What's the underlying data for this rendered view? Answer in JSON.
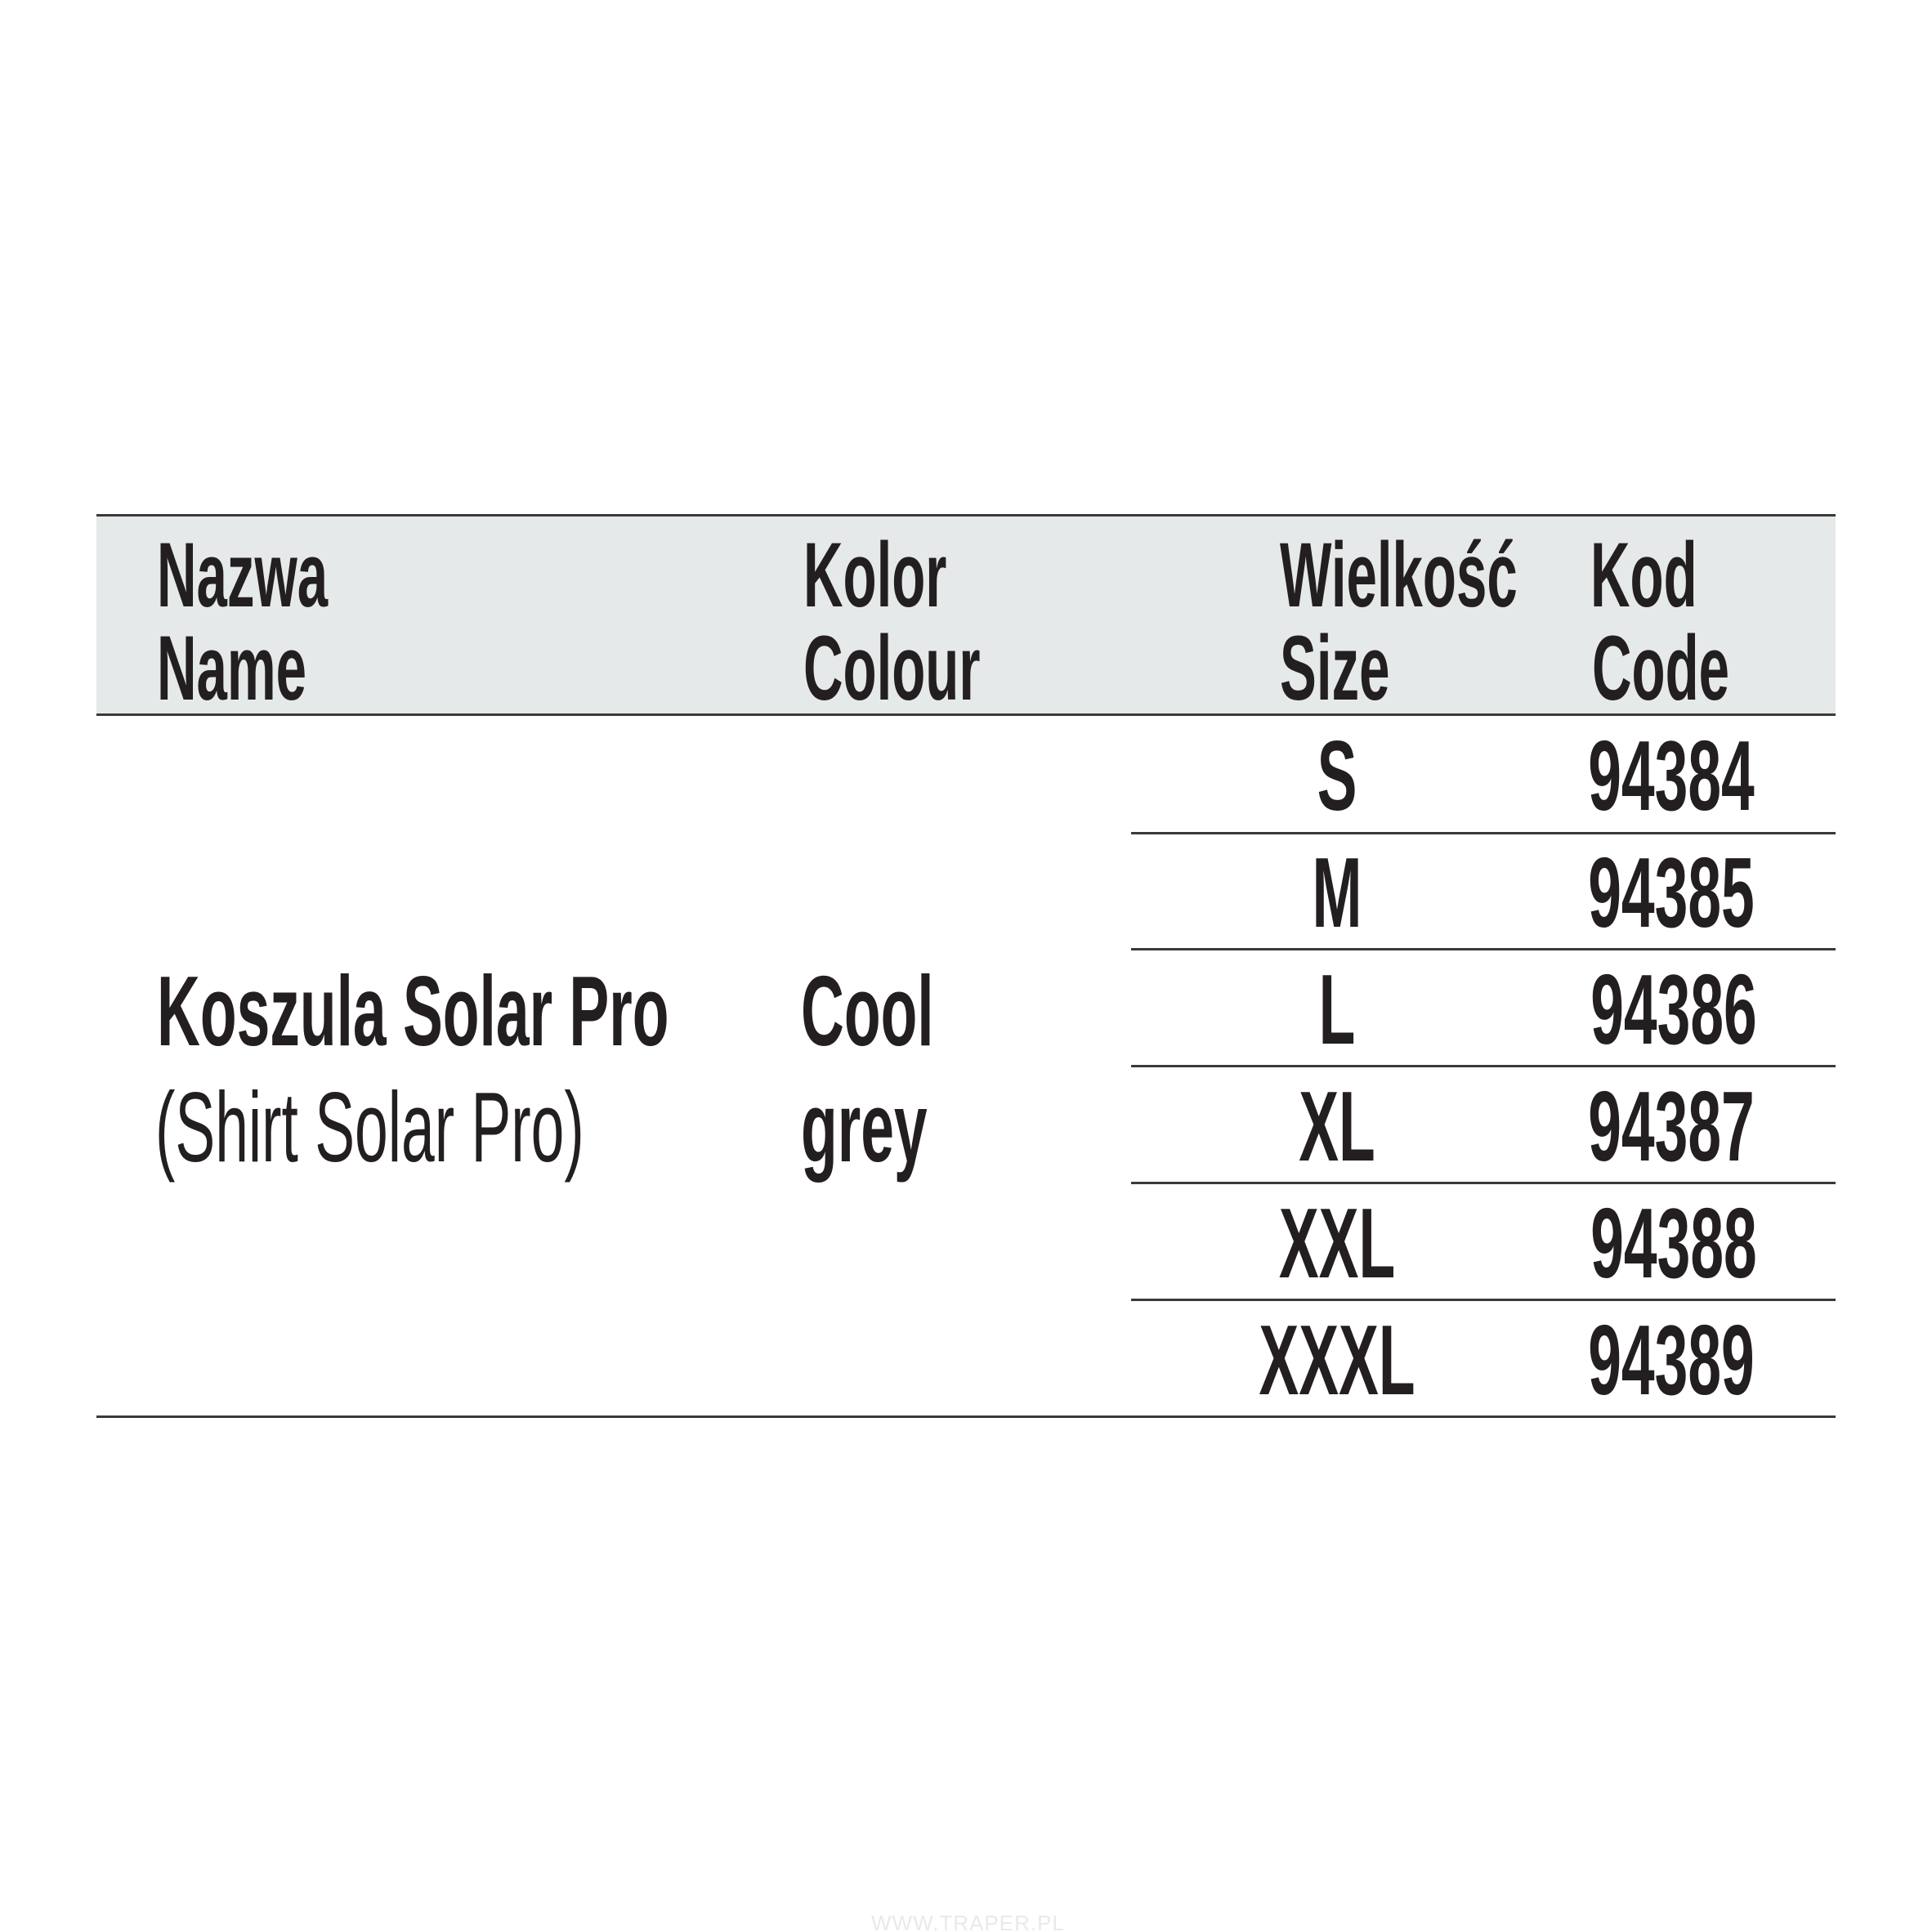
{
  "header": {
    "name_pl": "Nazwa",
    "name_en": "Name",
    "colour_pl": "Kolor",
    "colour_en": "Colour",
    "size_pl": "Wielkość",
    "size_en": "Size",
    "code_pl": "Kod",
    "code_en": "Code"
  },
  "product": {
    "name_pl": "Koszula Solar Pro",
    "name_en": "(Shirt Solar Pro)",
    "colour_line1": "Cool",
    "colour_line2": "grey"
  },
  "rows": [
    {
      "size": "S",
      "code": "94384"
    },
    {
      "size": "M",
      "code": "94385"
    },
    {
      "size": "L",
      "code": "94386"
    },
    {
      "size": "XL",
      "code": "94387"
    },
    {
      "size": "XXL",
      "code": "94388"
    },
    {
      "size": "XXXL",
      "code": "94389"
    }
  ],
  "watermark": "WWW.TRAPER.PL",
  "colors": {
    "text": "#231f20",
    "header_bg": "#e6e9e9",
    "rule": "#3a3a3a"
  }
}
